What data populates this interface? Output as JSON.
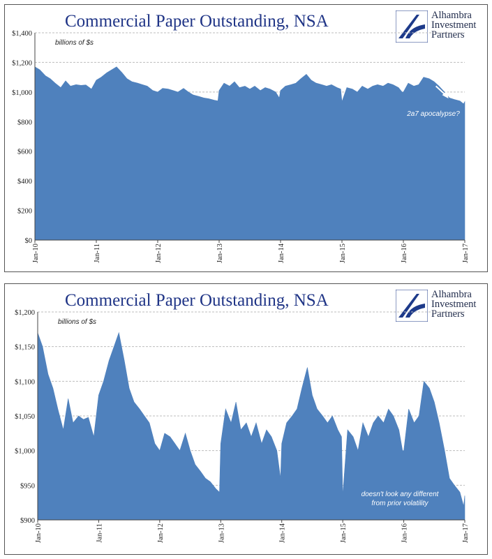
{
  "colors": {
    "title": "#1f3486",
    "area": "#4f81bd",
    "grid": "#bdbdbd",
    "annotation": "#ffffff",
    "logo_blue": "#1d3a8a"
  },
  "logo": {
    "icon": "alhambra-logo-icon",
    "line1": "Alhambra",
    "line2": "Investment",
    "line3": "Partners"
  },
  "chart_data": [
    {
      "type": "area",
      "title": "Commercial Paper Outstanding, NSA",
      "units": "billions of $s",
      "annotation": "2a7 apocalypse?",
      "ylim": [
        0,
        1400
      ],
      "y_ticks": [
        "$0",
        "$200",
        "$400",
        "$600",
        "$800",
        "$1,000",
        "$1,200",
        "$1,400"
      ],
      "x_ticks": [
        "Jan-10",
        "Jan-11",
        "Jan-12",
        "Jan-13",
        "Jan-14",
        "Jan-15",
        "Jan-16",
        "Jan-17"
      ],
      "grid": true,
      "x": [
        2010.0,
        2010.08,
        2010.17,
        2010.25,
        2010.33,
        2010.42,
        2010.5,
        2010.58,
        2010.67,
        2010.75,
        2010.83,
        2010.92,
        2011.0,
        2011.08,
        2011.17,
        2011.25,
        2011.33,
        2011.42,
        2011.5,
        2011.58,
        2011.67,
        2011.75,
        2011.83,
        2011.92,
        2012.0,
        2012.08,
        2012.17,
        2012.25,
        2012.33,
        2012.42,
        2012.5,
        2012.58,
        2012.67,
        2012.75,
        2012.83,
        2012.92,
        2012.98,
        2013.0,
        2013.08,
        2013.17,
        2013.25,
        2013.33,
        2013.42,
        2013.5,
        2013.58,
        2013.67,
        2013.75,
        2013.83,
        2013.92,
        2013.98,
        2014.0,
        2014.08,
        2014.17,
        2014.25,
        2014.33,
        2014.42,
        2014.5,
        2014.58,
        2014.67,
        2014.75,
        2014.83,
        2014.92,
        2014.98,
        2015.0,
        2015.08,
        2015.17,
        2015.25,
        2015.33,
        2015.42,
        2015.5,
        2015.58,
        2015.67,
        2015.75,
        2015.83,
        2015.92,
        2015.98,
        2016.0,
        2016.08,
        2016.17,
        2016.25,
        2016.33,
        2016.42,
        2016.5,
        2016.58,
        2016.67,
        2016.75,
        2016.83,
        2016.92,
        2016.98,
        2017.0
      ],
      "values": [
        1170,
        1150,
        1110,
        1090,
        1060,
        1030,
        1075,
        1040,
        1050,
        1045,
        1048,
        1020,
        1080,
        1100,
        1130,
        1150,
        1170,
        1130,
        1090,
        1070,
        1060,
        1050,
        1040,
        1010,
        1000,
        1025,
        1020,
        1010,
        1000,
        1025,
        1000,
        980,
        970,
        960,
        955,
        945,
        940,
        1010,
        1060,
        1040,
        1070,
        1030,
        1040,
        1020,
        1040,
        1010,
        1030,
        1020,
        1000,
        960,
        1010,
        1040,
        1050,
        1060,
        1090,
        1120,
        1080,
        1060,
        1050,
        1040,
        1050,
        1030,
        1020,
        935,
        1030,
        1020,
        1000,
        1040,
        1020,
        1040,
        1050,
        1040,
        1060,
        1050,
        1030,
        1000,
        1000,
        1060,
        1040,
        1050,
        1100,
        1090,
        1070,
        1040,
        1000,
        960,
        950,
        940,
        920,
        935
      ]
    },
    {
      "type": "area",
      "title": "Commercial Paper Outstanding, NSA",
      "units": "billions of $s",
      "annotation_line1": "doesn't look any different",
      "annotation_line2": "from prior volatility",
      "ylim": [
        900,
        1200
      ],
      "y_ticks": [
        "$900",
        "$950",
        "$1,000",
        "$1,050",
        "$1,100",
        "$1,150",
        "$1,200"
      ],
      "x_ticks": [
        "Jan-10",
        "Jan-11",
        "Jan-12",
        "Jan-13",
        "Jan-14",
        "Jan-15",
        "Jan-16",
        "Jan-17"
      ],
      "grid": true,
      "x": [
        2010.0,
        2010.08,
        2010.17,
        2010.25,
        2010.33,
        2010.42,
        2010.5,
        2010.58,
        2010.67,
        2010.75,
        2010.83,
        2010.92,
        2011.0,
        2011.08,
        2011.17,
        2011.25,
        2011.33,
        2011.42,
        2011.5,
        2011.58,
        2011.67,
        2011.75,
        2011.83,
        2011.92,
        2012.0,
        2012.08,
        2012.17,
        2012.25,
        2012.33,
        2012.42,
        2012.5,
        2012.58,
        2012.67,
        2012.75,
        2012.83,
        2012.92,
        2012.98,
        2013.0,
        2013.08,
        2013.17,
        2013.25,
        2013.33,
        2013.42,
        2013.5,
        2013.58,
        2013.67,
        2013.75,
        2013.83,
        2013.92,
        2013.98,
        2014.0,
        2014.08,
        2014.17,
        2014.25,
        2014.33,
        2014.42,
        2014.5,
        2014.58,
        2014.67,
        2014.75,
        2014.83,
        2014.92,
        2014.98,
        2015.0,
        2015.08,
        2015.17,
        2015.25,
        2015.33,
        2015.42,
        2015.5,
        2015.58,
        2015.67,
        2015.75,
        2015.83,
        2015.92,
        2015.98,
        2016.0,
        2016.08,
        2016.17,
        2016.25,
        2016.33,
        2016.42,
        2016.5,
        2016.58,
        2016.67,
        2016.75,
        2016.83,
        2016.92,
        2016.98,
        2017.0
      ],
      "values": [
        1170,
        1150,
        1110,
        1090,
        1060,
        1030,
        1075,
        1040,
        1050,
        1045,
        1048,
        1020,
        1080,
        1100,
        1130,
        1150,
        1170,
        1130,
        1090,
        1070,
        1060,
        1050,
        1040,
        1010,
        1000,
        1025,
        1020,
        1010,
        1000,
        1025,
        1000,
        980,
        970,
        960,
        955,
        945,
        940,
        1010,
        1060,
        1040,
        1070,
        1030,
        1040,
        1020,
        1040,
        1010,
        1030,
        1020,
        1000,
        960,
        1010,
        1040,
        1050,
        1060,
        1090,
        1120,
        1080,
        1060,
        1050,
        1040,
        1050,
        1030,
        1020,
        935,
        1030,
        1020,
        1000,
        1040,
        1020,
        1040,
        1050,
        1040,
        1060,
        1050,
        1030,
        1000,
        1000,
        1060,
        1040,
        1050,
        1100,
        1090,
        1070,
        1040,
        1000,
        960,
        950,
        940,
        920,
        935
      ]
    }
  ]
}
